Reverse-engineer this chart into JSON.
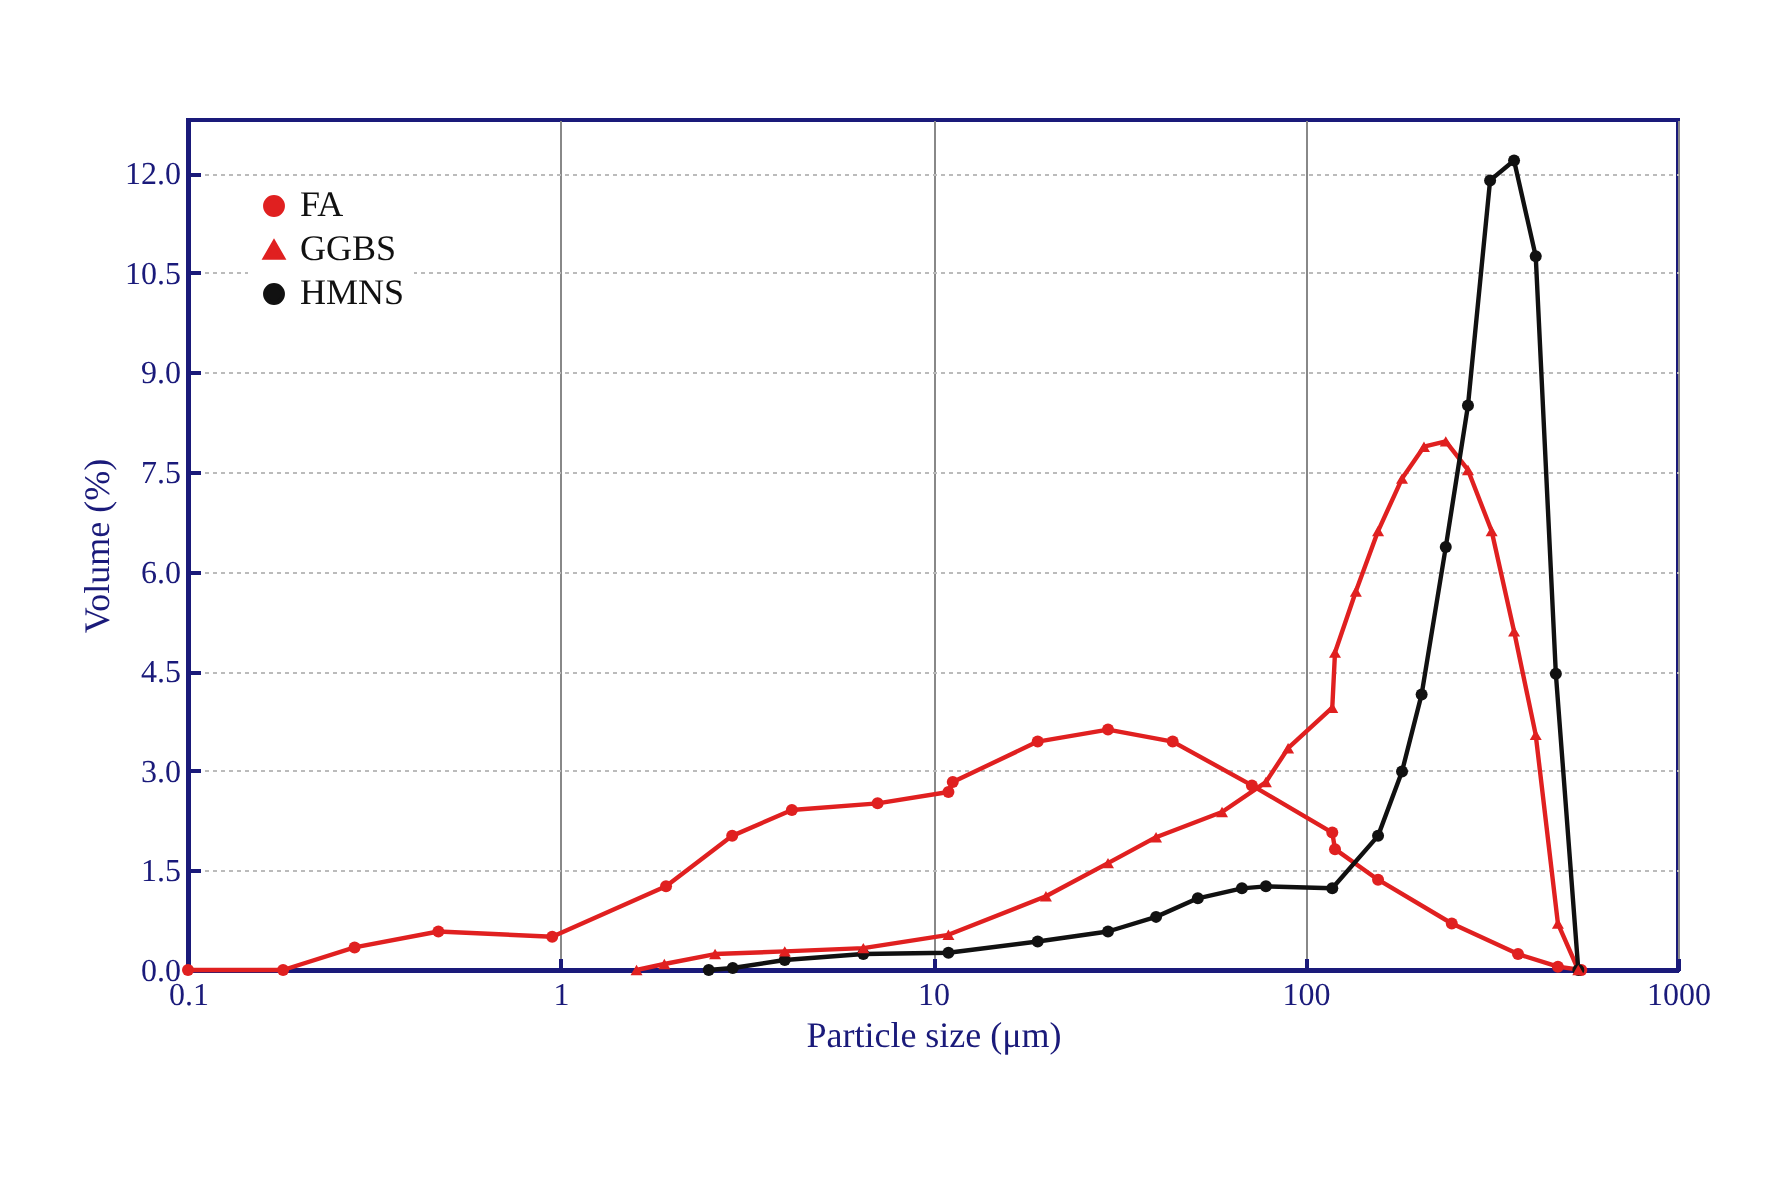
{
  "chart_data": {
    "type": "line",
    "xlabel": "Particle size (μm)",
    "ylabel": "Volume (%)",
    "log": "x",
    "xlim": [
      0.1,
      1000
    ],
    "xticks": [
      0.1,
      1,
      10,
      100,
      1000
    ],
    "ylim": [
      0,
      12.8
    ],
    "yticks": [
      {
        "value": 0,
        "label": "0.0"
      },
      {
        "value": 1.5,
        "label": "1.5"
      },
      {
        "value": 3,
        "label": "3.0"
      },
      {
        "value": 4.5,
        "label": "4.5"
      },
      {
        "value": 6,
        "label": "6.0"
      },
      {
        "value": 7.5,
        "label": "7.5"
      },
      {
        "value": 9,
        "label": "9.0"
      },
      {
        "value": 10.5,
        "label": "10.5"
      },
      {
        "value": 12,
        "label": "12.0"
      }
    ],
    "grid": true,
    "legend": "top left",
    "line_style": "solid",
    "series": [
      {
        "name": "FA",
        "color": "#e02020",
        "marker": "circle",
        "x": [
          0.1,
          0.18,
          0.28,
          0.47,
          0.95,
          1.92,
          2.89,
          4.18,
          7.1,
          11,
          11.3,
          19.1,
          29.5,
          44,
          71.8,
          118,
          120,
          156.6,
          247,
          372,
          476,
          550
        ],
        "values": [
          0,
          0,
          0.34,
          0.58,
          0.5,
          1.26,
          2.02,
          2.41,
          2.51,
          2.68,
          2.83,
          3.44,
          3.62,
          3.44,
          2.78,
          2.07,
          1.82,
          1.36,
          0.7,
          0.24,
          0.05,
          0
        ]
      },
      {
        "name": "GGBS",
        "color": "#e02020",
        "marker": "triangle",
        "x": [
          1.6,
          1.9,
          2.6,
          4,
          6.5,
          11,
          20.1,
          29.5,
          39.7,
          59.7,
          78.3,
          89.8,
          118,
          120,
          136.5,
          156.6,
          181.6,
          208,
          238,
          273,
          316,
          363,
          415,
          476,
          540
        ],
        "values": [
          0,
          0.09,
          0.24,
          0.28,
          0.33,
          0.53,
          1.11,
          1.61,
          2,
          2.38,
          2.83,
          3.34,
          3.95,
          4.78,
          5.7,
          6.61,
          7.4,
          7.88,
          7.96,
          7.53,
          6.61,
          5.1,
          3.54,
          0.7,
          0
        ]
      },
      {
        "name": "HMNS",
        "color": "#111111",
        "marker": "circle",
        "x": [
          2.5,
          2.9,
          4,
          6.5,
          11,
          19.1,
          29.5,
          39.7,
          51.4,
          67.5,
          78.3,
          118,
          156.6,
          181.6,
          205,
          238,
          273,
          313,
          363,
          415,
          470,
          540
        ],
        "values": [
          0,
          0.03,
          0.15,
          0.24,
          0.26,
          0.43,
          0.58,
          0.8,
          1.08,
          1.23,
          1.26,
          1.23,
          2.02,
          2.99,
          4.15,
          6.37,
          8.5,
          11.89,
          12.19,
          10.75,
          4.46,
          0
        ]
      }
    ]
  }
}
